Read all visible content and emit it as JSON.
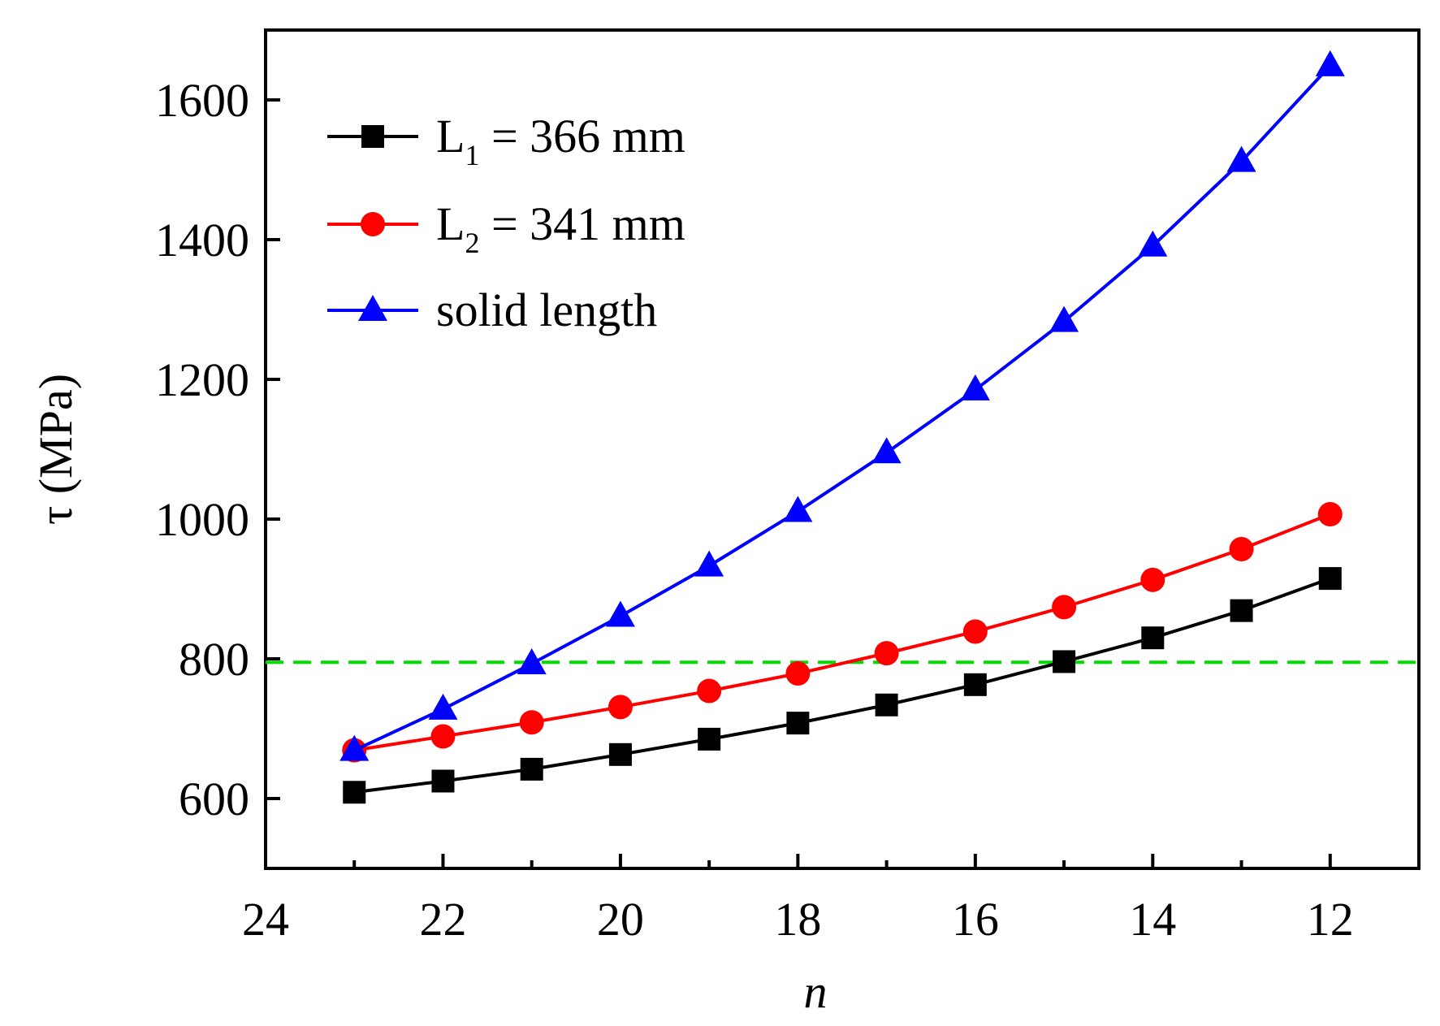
{
  "chart_data": {
    "type": "line",
    "title": "",
    "xlabel": "n",
    "ylabel": "τ (MPa)",
    "xlim": [
      24,
      11
    ],
    "ylim": [
      500,
      1700
    ],
    "x_reversed": true,
    "xticks": [
      24,
      22,
      20,
      18,
      16,
      14,
      12
    ],
    "xtick_labels": [
      "24",
      "22",
      "20",
      "18",
      "16",
      "14",
      "12"
    ],
    "yticks": [
      600,
      800,
      1000,
      1200,
      1400,
      1600
    ],
    "ytick_labels": [
      "600",
      "800",
      "1000",
      "1200",
      "1400",
      "1600"
    ],
    "x": [
      23,
      22,
      21,
      20,
      19,
      18,
      17,
      16,
      15,
      14,
      13,
      12
    ],
    "series": [
      {
        "name": "L1 = 366 mm",
        "legend_main": "L",
        "legend_sub": "1",
        "legend_rest": " = 366 mm",
        "color": "#000000",
        "marker": "square",
        "values": [
          609,
          625,
          642,
          663,
          685,
          708,
          734,
          763,
          796,
          830,
          869,
          915
        ]
      },
      {
        "name": "L2 = 341 mm",
        "legend_main": "L",
        "legend_sub": "2",
        "legend_rest": " = 341 mm",
        "color": "#ff0000",
        "marker": "circle",
        "values": [
          669,
          689,
          709,
          731,
          754,
          779,
          808,
          839,
          874,
          913,
          957,
          1007
        ]
      },
      {
        "name": "solid length",
        "legend_main": "solid length",
        "legend_sub": "",
        "legend_rest": "",
        "color": "#0000ff",
        "marker": "triangle",
        "values": [
          669,
          728,
          793,
          861,
          933,
          1011,
          1095,
          1185,
          1283,
          1391,
          1512,
          1649
        ]
      }
    ],
    "reference_line": {
      "value": 795,
      "color": "#00dd00",
      "style": "dashed"
    },
    "legend_position": "top-left",
    "grid": false
  }
}
